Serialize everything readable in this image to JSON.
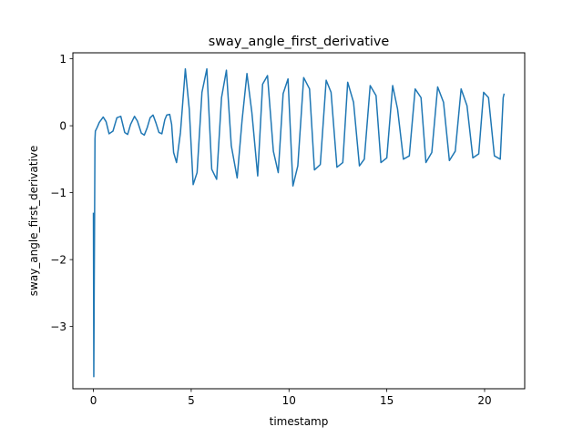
{
  "chart_data": {
    "type": "line",
    "title": "sway_angle_first_derivative",
    "xlabel": "timestamp",
    "ylabel": "sway_angle_first_derivative",
    "xlim": [
      -1.05,
      22.05
    ],
    "ylim": [
      -3.93,
      1.09
    ],
    "xticks": [
      0,
      5,
      10,
      15,
      20
    ],
    "yticks": [
      1,
      0,
      -1,
      -2,
      -3
    ],
    "xtick_labels": [
      "0",
      "5",
      "10",
      "15",
      "20"
    ],
    "ytick_labels": [
      "1",
      "0",
      "−1",
      "−2",
      "−3"
    ],
    "grid": false,
    "legend": "none",
    "series": [
      {
        "color": "#1f77b4",
        "x": [
          0.0,
          0.02,
          0.04,
          0.06,
          0.08,
          0.1,
          0.15,
          0.2,
          0.3,
          0.5,
          0.65,
          0.8,
          1.0,
          1.2,
          1.4,
          1.6,
          1.75,
          1.9,
          2.1,
          2.25,
          2.45,
          2.6,
          2.75,
          2.9,
          3.05,
          3.2,
          3.35,
          3.5,
          3.65,
          3.75,
          3.9,
          4.0,
          4.1,
          4.25,
          4.45,
          4.7,
          4.9,
          5.1,
          5.3,
          5.55,
          5.8,
          6.05,
          6.3,
          6.55,
          6.8,
          7.05,
          7.35,
          7.6,
          7.85,
          8.1,
          8.4,
          8.65,
          8.9,
          9.2,
          9.45,
          9.7,
          9.95,
          10.2,
          10.45,
          10.75,
          11.05,
          11.3,
          11.6,
          11.9,
          12.15,
          12.45,
          12.75,
          13.0,
          13.3,
          13.6,
          13.85,
          14.15,
          14.45,
          14.7,
          15.0,
          15.3,
          15.55,
          15.85,
          16.15,
          16.45,
          16.75,
          17.0,
          17.3,
          17.6,
          17.9,
          18.2,
          18.5,
          18.8,
          19.1,
          19.4,
          19.7,
          19.95,
          20.2,
          20.5,
          20.8,
          20.95,
          21.0
        ],
        "y": [
          -1.3,
          -3.75,
          -2.5,
          -1.4,
          -0.2,
          -0.08,
          -0.05,
          -0.02,
          0.05,
          0.13,
          0.06,
          -0.12,
          -0.08,
          0.12,
          0.14,
          -0.1,
          -0.13,
          0.02,
          0.14,
          0.07,
          -0.11,
          -0.14,
          -0.03,
          0.12,
          0.16,
          0.04,
          -0.1,
          -0.12,
          0.09,
          0.16,
          0.17,
          0.02,
          -0.4,
          -0.55,
          -0.1,
          0.85,
          0.25,
          -0.88,
          -0.7,
          0.5,
          0.85,
          -0.65,
          -0.8,
          0.42,
          0.83,
          -0.3,
          -0.78,
          0.08,
          0.78,
          0.2,
          -0.75,
          0.62,
          0.75,
          -0.38,
          -0.7,
          0.48,
          0.7,
          -0.9,
          -0.6,
          0.72,
          0.55,
          -0.66,
          -0.58,
          0.68,
          0.5,
          -0.62,
          -0.55,
          0.65,
          0.35,
          -0.6,
          -0.5,
          0.6,
          0.45,
          -0.55,
          -0.48,
          0.6,
          0.25,
          -0.5,
          -0.45,
          0.55,
          0.42,
          -0.55,
          -0.4,
          0.58,
          0.35,
          -0.52,
          -0.38,
          0.55,
          0.3,
          -0.48,
          -0.42,
          0.5,
          0.42,
          -0.45,
          -0.5,
          0.42,
          0.48
        ]
      }
    ]
  }
}
